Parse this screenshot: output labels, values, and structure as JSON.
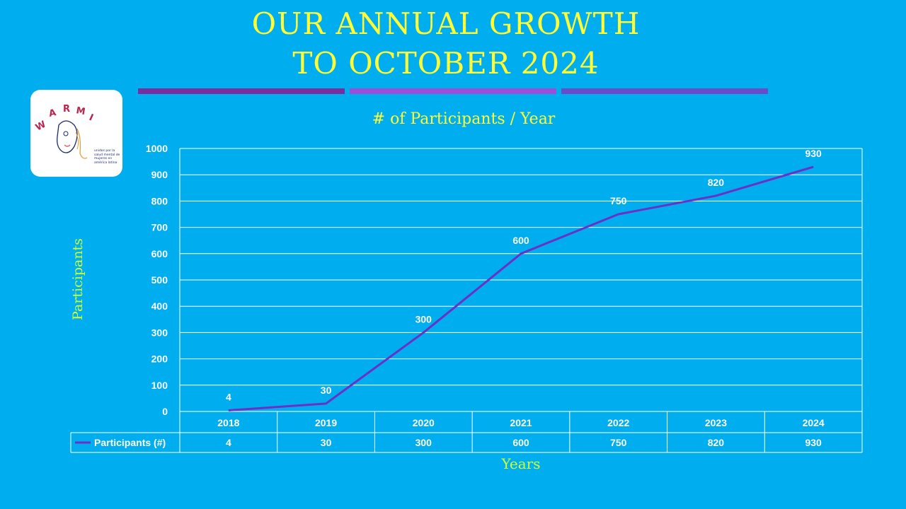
{
  "title_lines": [
    "OUR ANNUAL GROWTH",
    "TO OCTOBER 2024"
  ],
  "logo": {
    "text": "WARMI",
    "subtitle": "unidos por la salud mental de mujeres en américa latina"
  },
  "colors": {
    "background": "#00AEEF",
    "title": "#FFFF33",
    "axis_title": "#CCFF33",
    "line": "#6A30C8",
    "bars": [
      "#7A2E9E",
      "#9B4FD8",
      "#6A4CC8"
    ]
  },
  "chart_data": {
    "type": "line",
    "title": "# of Participants / Year",
    "xlabel": "Years",
    "ylabel": "Participants",
    "categories": [
      "2018",
      "2019",
      "2020",
      "2021",
      "2022",
      "2023",
      "2024"
    ],
    "series": [
      {
        "name": "Participants (#)",
        "values": [
          4,
          30,
          300,
          600,
          750,
          820,
          930
        ]
      }
    ],
    "ylim": [
      0,
      1000
    ],
    "yticks": [
      0,
      100,
      200,
      300,
      400,
      500,
      600,
      700,
      800,
      900,
      1000
    ],
    "grid": true,
    "data_table": true
  }
}
